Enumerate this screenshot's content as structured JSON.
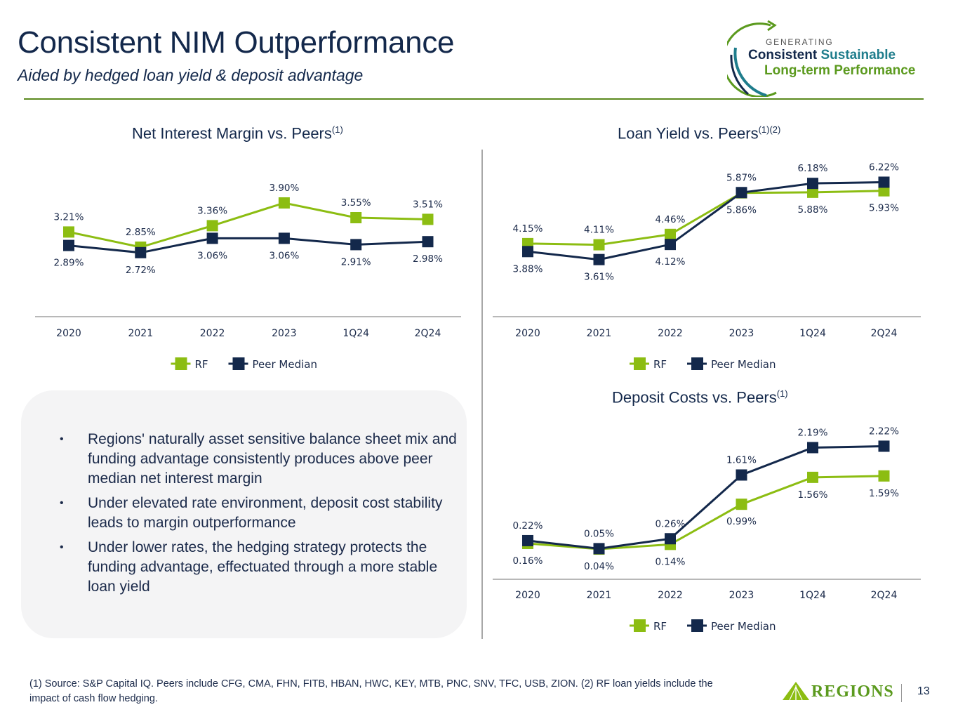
{
  "header": {
    "title": "Consistent NIM Outperformance",
    "subtitle": "Aided by hedged loan yield & deposit advantage"
  },
  "logo": {
    "generating": "GENERATING",
    "line1_a": "Consistent",
    "line1_b": "Sustainable",
    "line2": "Long-term Performance"
  },
  "colors": {
    "rf": "#8cbd12",
    "peer": "#13284b",
    "accent_rule": "#5b8a1e",
    "axis": "#a0a0a0"
  },
  "chart_data": [
    {
      "id": "nim",
      "type": "line",
      "title": "Net Interest Margin vs. Peers",
      "title_sup": "(1)",
      "categories": [
        "2020",
        "2021",
        "2022",
        "2023",
        "1Q24",
        "2Q24"
      ],
      "series": [
        {
          "name": "RF",
          "values": [
            3.21,
            2.85,
            3.36,
            3.9,
            3.55,
            3.51
          ],
          "labels": [
            "3.21%",
            "2.85%",
            "3.36%",
            "3.90%",
            "3.55%",
            "3.51%"
          ]
        },
        {
          "name": "Peer Median",
          "values": [
            2.89,
            2.72,
            3.06,
            3.06,
            2.91,
            2.98
          ],
          "labels": [
            "2.89%",
            "2.72%",
            "3.06%",
            "3.06%",
            "2.91%",
            "2.98%"
          ]
        }
      ],
      "ylim": [
        1.8,
        4.3
      ],
      "grid": false,
      "legend": "bottom-center"
    },
    {
      "id": "loan",
      "type": "line",
      "title": "Loan Yield vs. Peers",
      "title_sup": "(1)(2)",
      "categories": [
        "2020",
        "2021",
        "2022",
        "2023",
        "1Q24",
        "2Q24"
      ],
      "series": [
        {
          "name": "RF",
          "values": [
            4.15,
            4.11,
            4.46,
            5.86,
            5.88,
            5.93
          ],
          "labels": [
            "4.15%",
            "4.11%",
            "4.46%",
            "5.86%",
            "5.88%",
            "5.93%"
          ]
        },
        {
          "name": "Peer Median",
          "values": [
            3.88,
            3.61,
            4.12,
            5.87,
            6.18,
            6.22
          ],
          "labels": [
            "3.88%",
            "3.61%",
            "4.12%",
            "5.87%",
            "6.18%",
            "6.22%"
          ]
        }
      ],
      "ylim": [
        2.3,
        6.8
      ],
      "grid": false,
      "legend": "bottom-center"
    },
    {
      "id": "deposit",
      "type": "line",
      "title": "Deposit Costs vs. Peers",
      "title_sup": "(1)",
      "categories": [
        "2020",
        "2021",
        "2022",
        "2023",
        "1Q24",
        "2Q24"
      ],
      "series": [
        {
          "name": "RF",
          "values": [
            0.16,
            0.04,
            0.14,
            0.99,
            1.56,
            1.59
          ],
          "labels": [
            "0.16%",
            "0.04%",
            "0.14%",
            "0.99%",
            "1.56%",
            "1.59%"
          ]
        },
        {
          "name": "Peer Median",
          "values": [
            0.22,
            0.05,
            0.26,
            1.61,
            2.19,
            2.22
          ],
          "labels": [
            "0.22%",
            "0.05%",
            "0.26%",
            "1.61%",
            "2.19%",
            "2.22%"
          ]
        }
      ],
      "ylim": [
        -0.45,
        2.45
      ],
      "grid": false,
      "legend": "bottom-center"
    }
  ],
  "callout": {
    "bullets": [
      "Regions' naturally asset sensitive balance sheet mix and funding advantage consistently produces above peer median net interest margin",
      "Under elevated rate environment, deposit cost stability leads to margin outperformance",
      "Under lower rates, the hedging strategy protects the funding advantage, effectuated through a more stable loan yield"
    ],
    "bullet_glyph": "•"
  },
  "footer": {
    "footnote": "(1) Source: S&P Capital IQ. Peers include CFG, CMA, FHN, FITB, HBAN, HWC, KEY, MTB, PNC, SNV, TFC, USB, ZION.  (2) RF loan yields include the impact of cash flow hedging.",
    "brand": "Regions",
    "page_number": "13"
  }
}
